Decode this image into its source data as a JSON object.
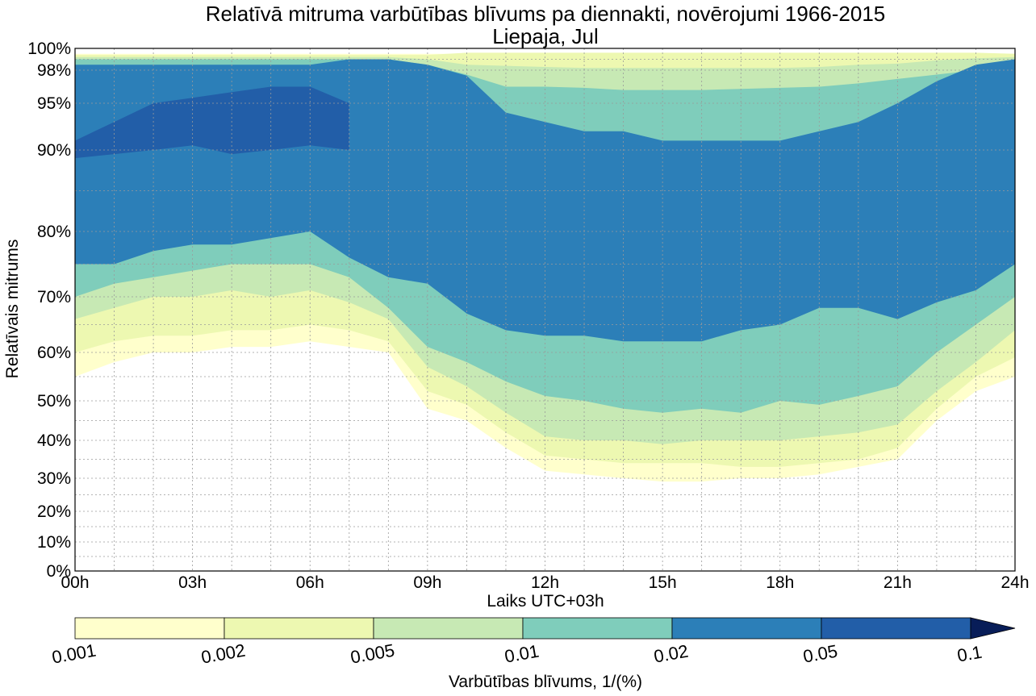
{
  "chart_data": {
    "type": "filled-contour",
    "title": "Relatīvā mitruma varbūtības blīvums pa diennakti, novērojumi 1966-2015",
    "subtitle": "Liepaja, Jul",
    "xlabel": "Laiks UTC+03h",
    "ylabel": "Relatīvais mitrums",
    "x_ticks": [
      "00h",
      "03h",
      "06h",
      "09h",
      "12h",
      "15h",
      "18h",
      "21h",
      "24h"
    ],
    "x_tick_hours": [
      0,
      3,
      6,
      9,
      12,
      15,
      18,
      21,
      24
    ],
    "xlim": [
      0,
      24
    ],
    "y_ticks": [
      "0%",
      "10%",
      "20%",
      "30%",
      "40%",
      "50%",
      "60%",
      "70%",
      "80%",
      "90%",
      "95%",
      "98%",
      "100%"
    ],
    "y_tick_values": [
      0,
      10,
      20,
      30,
      40,
      50,
      60,
      70,
      80,
      90,
      95,
      98,
      100
    ],
    "ylim": [
      0,
      100
    ],
    "y_scale": "nonlinear (expanded toward 100%)",
    "grid": true,
    "colorbar": {
      "label": "Varbūtības blīvums, 1/(%)",
      "ticks": [
        "0.001",
        "0.002",
        "0.005",
        "0.01",
        "0.02",
        "0.05",
        "0.1"
      ],
      "extend": "max",
      "colors": [
        "#ffffcc",
        "#edf8b1",
        "#c7e9b4",
        "#7fcdbb",
        "#2c7fb8",
        "#225ea8",
        "#081d58"
      ]
    },
    "bands": [
      {
        "level": "0.001-0.002",
        "color": "#ffffcc",
        "hours": [
          0,
          1,
          2,
          3,
          4,
          5,
          6,
          7,
          8,
          9,
          10,
          11,
          12,
          13,
          14,
          15,
          16,
          17,
          18,
          19,
          20,
          21,
          22,
          23,
          24
        ],
        "low": [
          55,
          58,
          60,
          60,
          61,
          61,
          62,
          61,
          60,
          48,
          45,
          38,
          32,
          31,
          30,
          29,
          29,
          30,
          30,
          31,
          33,
          35,
          45,
          52,
          55
        ],
        "high": [
          99.5,
          99.5,
          99.5,
          99.5,
          99.5,
          99.5,
          99.5,
          99.5,
          99.5,
          99.5,
          99.5,
          99.5,
          99.5,
          99.5,
          99.5,
          99.5,
          99.5,
          99.5,
          99.5,
          99.5,
          99.5,
          99.5,
          99.5,
          99.5,
          99.5
        ]
      },
      {
        "level": "0.002-0.005",
        "color": "#edf8b1",
        "hours": [
          0,
          1,
          2,
          3,
          4,
          5,
          6,
          7,
          8,
          9,
          10,
          11,
          12,
          13,
          14,
          15,
          16,
          17,
          18,
          19,
          20,
          21,
          22,
          23,
          24
        ],
        "low": [
          60,
          62,
          63,
          63,
          64,
          64,
          65,
          64,
          62,
          52,
          49,
          42,
          36,
          35,
          34,
          34,
          34,
          33,
          33,
          34,
          35,
          38,
          48,
          55,
          59
        ],
        "high": [
          99.4,
          99.4,
          99.4,
          99.4,
          99.4,
          99.4,
          99.4,
          99.4,
          99.4,
          99.4,
          99.6,
          99.6,
          99.6,
          99.6,
          99.6,
          99.6,
          99.6,
          99.6,
          99.6,
          99.6,
          99.6,
          99.6,
          99.6,
          99.6,
          99.5
        ]
      },
      {
        "level": "0.005-0.01",
        "color": "#c7e9b4",
        "hours": [
          0,
          1,
          2,
          3,
          4,
          5,
          6,
          7,
          8,
          9,
          10,
          11,
          12,
          13,
          14,
          15,
          16,
          17,
          18,
          19,
          20,
          21,
          22,
          23,
          24
        ],
        "low": [
          66,
          68,
          70,
          70,
          71,
          70,
          71,
          69,
          66,
          57,
          53,
          47,
          41,
          40,
          40,
          39,
          40,
          40,
          40,
          41,
          42,
          44,
          52,
          58,
          64
        ],
        "high": [
          99.2,
          99.2,
          99.2,
          99.2,
          99.2,
          99.2,
          99.2,
          99.2,
          99.2,
          99,
          98.5,
          98.4,
          98.3,
          98.2,
          98.2,
          98.2,
          98.2,
          98.2,
          98.2,
          98.3,
          98.5,
          98.6,
          98.9,
          99.1,
          99.2
        ]
      },
      {
        "level": "0.01-0.02",
        "color": "#7fcdbb",
        "hours": [
          0,
          1,
          2,
          3,
          4,
          5,
          6,
          7,
          8,
          9,
          10,
          11,
          12,
          13,
          14,
          15,
          16,
          17,
          18,
          19,
          20,
          21,
          22,
          23,
          24
        ],
        "low": [
          70,
          72,
          73,
          74,
          75,
          75,
          75,
          73,
          68,
          61,
          58,
          54,
          51,
          50,
          48,
          47,
          48,
          47,
          50,
          49,
          51,
          53,
          60,
          65,
          70
        ],
        "high": [
          99,
          99,
          99,
          99,
          99,
          99,
          99,
          99,
          99,
          98.5,
          97.6,
          96.5,
          96.5,
          96.4,
          96.2,
          96.2,
          96.2,
          96.3,
          96.4,
          96.5,
          96.8,
          97.2,
          97.6,
          98,
          98.4
        ]
      },
      {
        "level": "0.02-0.05",
        "color": "#2c7fb8",
        "hours": [
          0,
          1,
          2,
          3,
          4,
          5,
          6,
          7,
          8,
          9,
          10,
          11,
          12,
          13,
          14,
          15,
          16,
          17,
          18,
          19,
          20,
          21,
          22,
          23,
          24
        ],
        "low": [
          75,
          75,
          77,
          78,
          78,
          79,
          80,
          76,
          73,
          72,
          67,
          64,
          63,
          63,
          62,
          62,
          62,
          64,
          65,
          68,
          68,
          66,
          69,
          71,
          75
        ],
        "high": [
          98.5,
          98.5,
          98.5,
          98.5,
          98.5,
          98.5,
          98.5,
          99,
          99,
          98.5,
          97.5,
          94,
          93,
          92,
          92,
          91,
          91,
          91,
          91,
          92,
          93,
          95,
          97,
          98.5,
          99
        ]
      },
      {
        "level": "0.05-0.1",
        "color": "#225ea8",
        "hours": [
          0,
          1,
          2,
          3,
          4,
          5,
          6,
          7
        ],
        "low": [
          89,
          89.5,
          90,
          90.5,
          89.5,
          90,
          90.5,
          90
        ],
        "high": [
          91,
          93,
          95,
          95.5,
          96,
          96.5,
          96.5,
          95
        ]
      }
    ]
  }
}
